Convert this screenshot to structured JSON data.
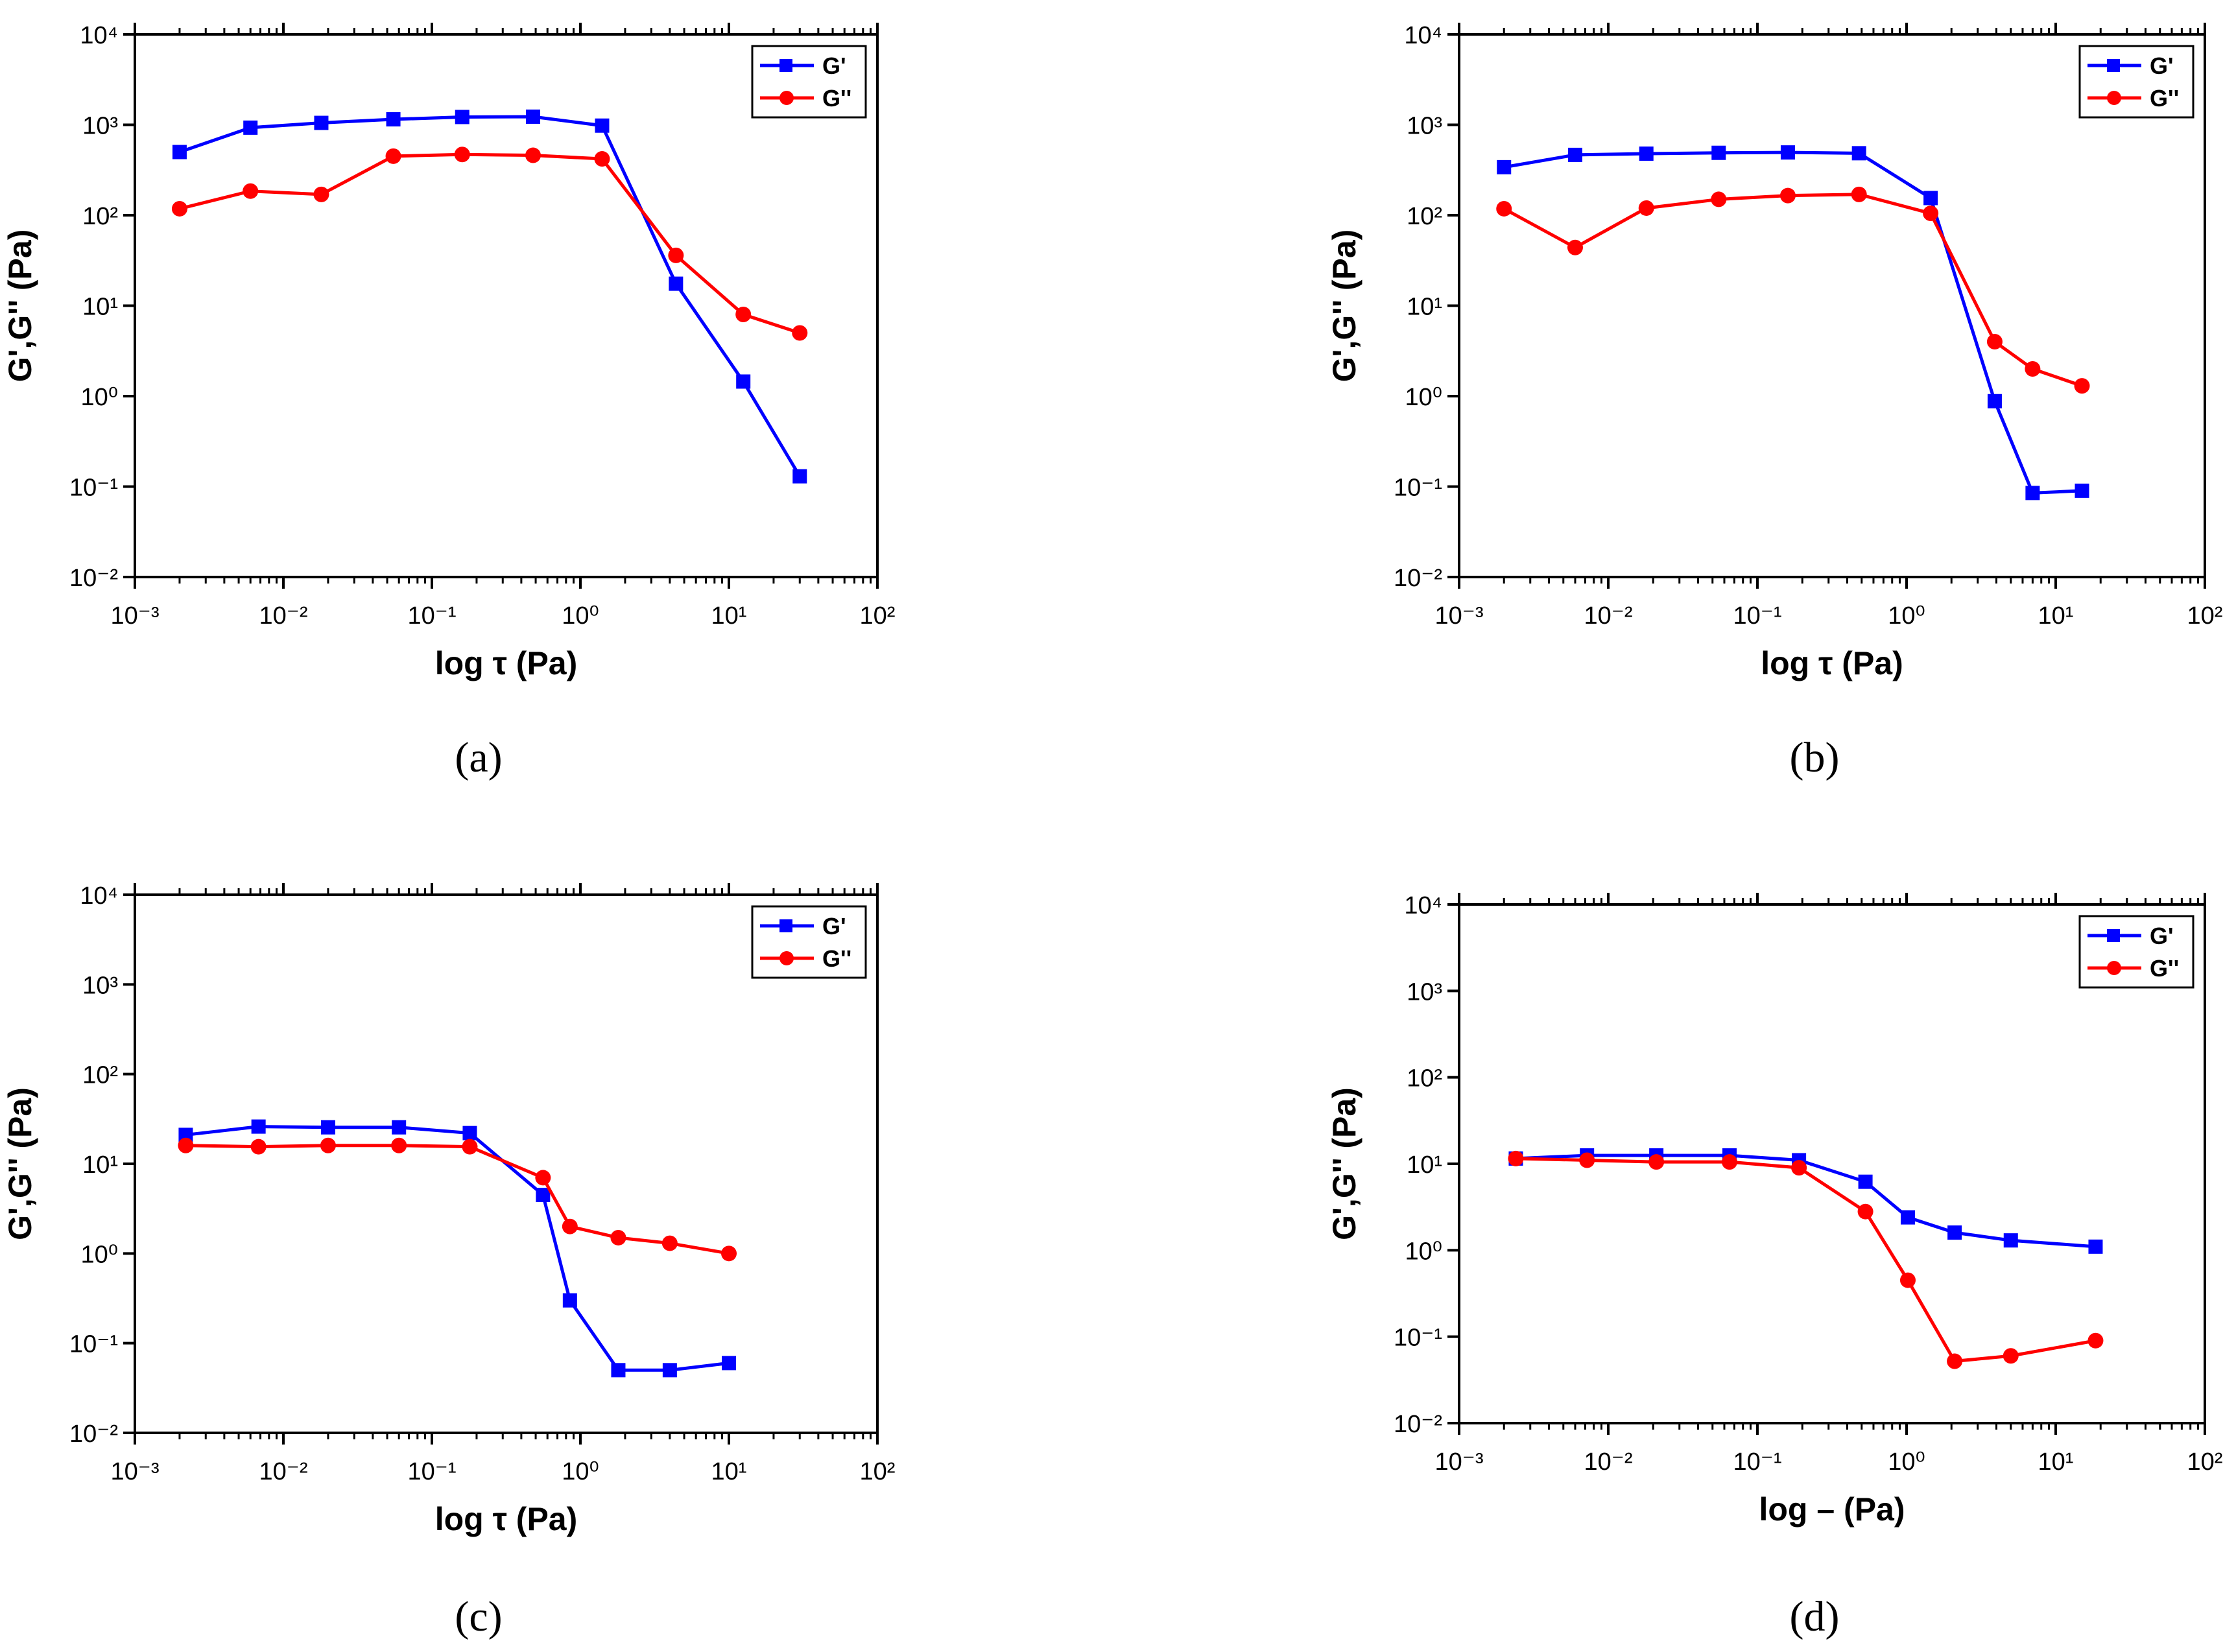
{
  "colors": {
    "g_prime": "#0000ff",
    "g_double_prime": "#ff0000",
    "axis": "#000000"
  },
  "chart_data": [
    {
      "panel": "a",
      "type": "line",
      "caption": "(a)",
      "xlabel": "log τ (Pa)",
      "ylabel": "G',G'' (Pa)",
      "x_scale": "log",
      "y_scale": "log",
      "xlim": [
        0.001,
        100
      ],
      "ylim": [
        0.01,
        10000
      ],
      "legend_position": "top-right",
      "series": [
        {
          "name": "G'",
          "color": "#0000ff",
          "marker": "square",
          "x": [
            0.002,
            0.006,
            0.018,
            0.055,
            0.16,
            0.48,
            1.4,
            4.4,
            12.5,
            30
          ],
          "y": [
            500,
            930,
            1050,
            1150,
            1220,
            1230,
            980,
            17.5,
            1.45,
            0.13
          ]
        },
        {
          "name": "G''",
          "color": "#ff0000",
          "marker": "circle",
          "x": [
            0.002,
            0.006,
            0.018,
            0.055,
            0.16,
            0.48,
            1.4,
            4.4,
            12.5,
            30
          ],
          "y": [
            118,
            185,
            170,
            450,
            470,
            460,
            420,
            36,
            8,
            5
          ]
        }
      ]
    },
    {
      "panel": "b",
      "type": "line",
      "caption": "(b)",
      "xlabel": "log τ (Pa)",
      "ylabel": "G',G'' (Pa)",
      "x_scale": "log",
      "y_scale": "log",
      "xlim": [
        0.001,
        100
      ],
      "ylim": [
        0.01,
        10000
      ],
      "legend_position": "top-right",
      "series": [
        {
          "name": "G'",
          "color": "#0000ff",
          "marker": "square",
          "x": [
            0.002,
            0.006,
            0.018,
            0.055,
            0.16,
            0.48,
            1.45,
            3.9,
            7,
            15
          ],
          "y": [
            340,
            465,
            480,
            490,
            495,
            485,
            155,
            0.88,
            0.085,
            0.09
          ]
        },
        {
          "name": "G''",
          "color": "#ff0000",
          "marker": "circle",
          "x": [
            0.002,
            0.006,
            0.018,
            0.055,
            0.16,
            0.48,
            1.45,
            3.9,
            7,
            15
          ],
          "y": [
            118,
            44,
            120,
            150,
            165,
            170,
            105,
            4,
            2,
            1.3
          ]
        }
      ]
    },
    {
      "panel": "c",
      "type": "line",
      "caption": "(c)",
      "xlabel": "log τ (Pa)",
      "ylabel": "G',G'' (Pa)",
      "x_scale": "log",
      "y_scale": "log",
      "xlim": [
        0.001,
        100
      ],
      "ylim": [
        0.01,
        10000
      ],
      "legend_position": "top-right",
      "series": [
        {
          "name": "G'",
          "color": "#0000ff",
          "marker": "square",
          "x": [
            0.0022,
            0.0068,
            0.02,
            0.06,
            0.18,
            0.56,
            0.85,
            1.8,
            4,
            10
          ],
          "y": [
            21,
            26,
            25.5,
            25.5,
            22,
            4.5,
            0.3,
            0.05,
            0.05,
            0.06
          ]
        },
        {
          "name": "G''",
          "color": "#ff0000",
          "marker": "circle",
          "x": [
            0.0022,
            0.0068,
            0.02,
            0.06,
            0.18,
            0.56,
            0.85,
            1.8,
            4,
            10
          ],
          "y": [
            16,
            15.5,
            16,
            16,
            15.5,
            7,
            2,
            1.5,
            1.3,
            1
          ]
        }
      ]
    },
    {
      "panel": "d",
      "type": "line",
      "caption": "(d)",
      "xlabel": "log – (Pa)",
      "ylabel": "G',G'' (Pa)",
      "x_scale": "log",
      "y_scale": "log",
      "xlim": [
        0.001,
        100
      ],
      "ylim": [
        0.01,
        10000
      ],
      "legend_position": "top-right",
      "series": [
        {
          "name": "G'",
          "color": "#0000ff",
          "marker": "square",
          "x": [
            0.0024,
            0.0072,
            0.021,
            0.065,
            0.19,
            0.53,
            1.02,
            2.1,
            5,
            18.5
          ],
          "y": [
            11.5,
            12.5,
            12.5,
            12.5,
            11,
            6.2,
            2.4,
            1.6,
            1.3,
            1.1
          ]
        },
        {
          "name": "G''",
          "color": "#ff0000",
          "marker": "circle",
          "x": [
            0.0024,
            0.0072,
            0.021,
            0.065,
            0.19,
            0.53,
            1.02,
            2.1,
            5,
            18.5
          ],
          "y": [
            11.5,
            11,
            10.5,
            10.5,
            9,
            2.8,
            0.45,
            0.052,
            0.06,
            0.09
          ]
        }
      ]
    }
  ]
}
